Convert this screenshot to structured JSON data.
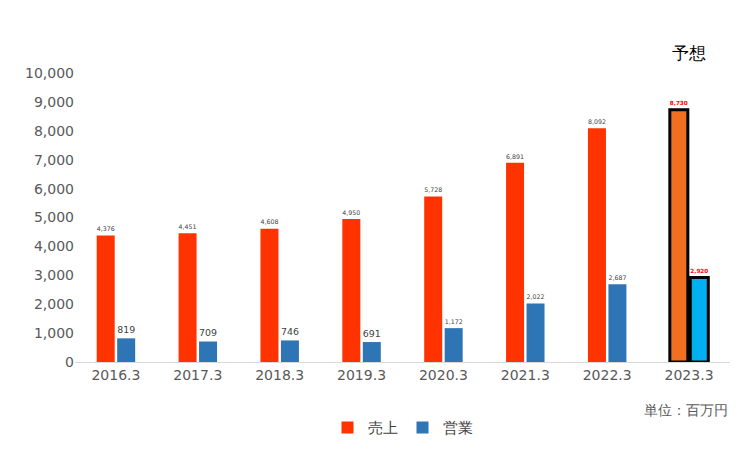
{
  "chart_data": {
    "type": "bar",
    "categories": [
      "2016.3",
      "2017.3",
      "2018.3",
      "2019.3",
      "2020.3",
      "2021.3",
      "2022.3",
      "2023.3"
    ],
    "series": [
      {
        "name": "売上",
        "values": [
          4376,
          4451,
          4608,
          4950,
          5728,
          6891,
          8092,
          8730
        ],
        "value_labels": [
          "4,376",
          "4,451",
          "4,608",
          "4,950",
          "5,728",
          "6,891",
          "8,092",
          "8,730"
        ],
        "color": "#ff3300",
        "colors": [
          "#ff3300",
          "#ff3300",
          "#ff3300",
          "#ff3300",
          "#ff3300",
          "#ff3300",
          "#ff3300",
          "#f07020"
        ]
      },
      {
        "name": "営業",
        "values": [
          819,
          709,
          746,
          691,
          1172,
          2022,
          2687,
          2920
        ],
        "value_labels": [
          "819",
          "709",
          "746",
          "691",
          "1,172",
          "2,022",
          "2,687",
          "2,920"
        ],
        "color": "#2e75b6",
        "colors": [
          "#2e75b6",
          "#2e75b6",
          "#2e75b6",
          "#2e75b6",
          "#2e75b6",
          "#2e75b6",
          "#2e75b6",
          "#00b0f0"
        ]
      }
    ],
    "ylim": [
      0,
      10000
    ],
    "yticks": [
      0,
      {
        "value": 1000,
        "label": "1,000"
      },
      {
        "value": 2000,
        "label": "2,000"
      },
      {
        "value": 3000,
        "label": "3,000"
      },
      {
        "value": 4000,
        "label": "4,000"
      },
      {
        "value": 5000,
        "label": "5,000"
      },
      {
        "value": 6000,
        "label": "6,000"
      },
      {
        "value": 7000,
        "label": "7,000"
      },
      {
        "value": 8000,
        "label": "8,000"
      },
      {
        "value": 9000,
        "label": "9,000"
      },
      {
        "value": 10000,
        "label": "10,000"
      }
    ],
    "grid": false,
    "legend": "bottom",
    "data_labels": true,
    "annotations": [
      "予想",
      "単位：百万円"
    ]
  }
}
